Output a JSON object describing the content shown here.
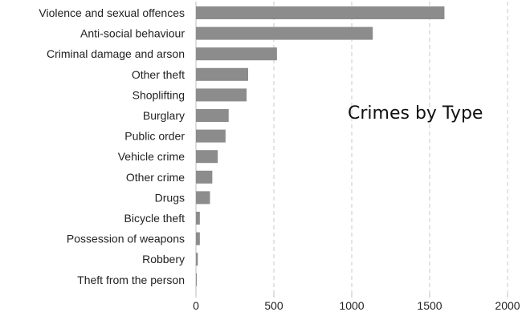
{
  "chart_data": {
    "type": "bar",
    "orientation": "horizontal",
    "title": "Crimes by Type",
    "categories": [
      "Violence and sexual offences",
      "Anti-social behaviour",
      "Criminal damage and arson",
      "Other theft",
      "Shoplifting",
      "Burglary",
      "Public order",
      "Vehicle crime",
      "Other crime",
      "Drugs",
      "Bicycle theft",
      "Possession of weapons",
      "Robbery",
      "Theft from the person"
    ],
    "values": [
      1595,
      1135,
      520,
      335,
      325,
      210,
      190,
      140,
      105,
      90,
      25,
      25,
      12,
      5
    ],
    "xlim": [
      0,
      2000
    ],
    "xticks": [
      "0",
      "500",
      "1000",
      "1500",
      "2000"
    ],
    "xlabel": "",
    "ylabel": "",
    "grid": true,
    "bar_color": "#8c8c8c"
  }
}
